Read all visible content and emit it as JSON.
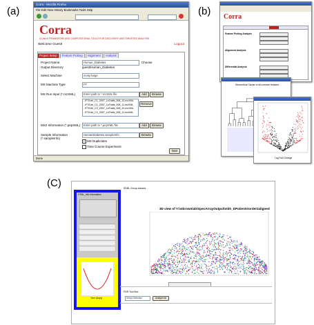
{
  "labels": {
    "a": "(a)",
    "b": "(b)",
    "c": "(C)"
  },
  "panel_a": {
    "window_title": "Corra - Mozilla Firefox",
    "menu": "File  Edit  View  History  Bookmarks  Tools  Help",
    "logo": "Corra",
    "tagline": "A LINUX FRAMEWORK AND COMPUTATIONAL TOOLS FOR DISCOVERY AND TARGETED ANALYSIS",
    "welcome": "Welcome Guest!",
    "logout": "Logout",
    "tabs": [
      "Project Setup",
      "Feature Picking",
      "Alignment",
      "Analysis"
    ],
    "form": {
      "project_name_label": "Project Name",
      "project_name": "Human_Diabetes",
      "choose": "Choose",
      "output_dir_label": "Output Directory",
      "output_dir": "guest/Human_Diabetes",
      "machine_label": "Select Machine",
      "machine": "mosy-large",
      "ms_type_label": "MS Machine Type",
      "ms_type": "FT",
      "ms_run_label": "MS Run Input (*.mzXML)",
      "ms_run_placeholder": "Enter path to *.mzXML file",
      "add": "Add",
      "browse": "Browse",
      "ms_run_files": [
        "../FT/Lite_C1_2007_LoTrails_008_10.mzXML",
        "../FT/Lite_C1_2007_LoTrails_008_11.mzXML",
        "../FT/Lite_C2_2007_LoTrails_008_10.mzXML",
        "../FT/Lite_C2_2007_LoTrails_008_11.mzXML"
      ],
      "remove": "Remove",
      "ms2_label": "MS2 Information (*.pepXML)",
      "ms2_placeholder": "Enter path to *.pepXML file",
      "sample_label": "Sample Information (*.sampleInfo)",
      "sample": "HumanDiabetes.sampleInfo",
      "duplicates": "MS Duplicates",
      "time_course": "Time Course Experiment",
      "next": "Next"
    },
    "status": "Done"
  },
  "panel_b": {
    "logo": "Corra",
    "sections": [
      "Feature Picking Analysis",
      "Alignment Analysis",
      "Differential Analysis"
    ],
    "cluster_title": "Hierarchical Cluster of all common features",
    "volcano_xlabel": "Log Fold Change"
  },
  "panel_c": {
    "left_title": "HTML_Info Information",
    "group_title": "SDBL Group classes",
    "plot_title": "3D view of Y:\\mbrownlab\\SpecArrayOutput\\mbh_DPatients\\order2aligned",
    "curve_xlabel": "Time (Days)",
    "fdr_title": "FDR Tool Box",
    "select": "Setup Selection",
    "analyze": "Analyze fdr"
  }
}
